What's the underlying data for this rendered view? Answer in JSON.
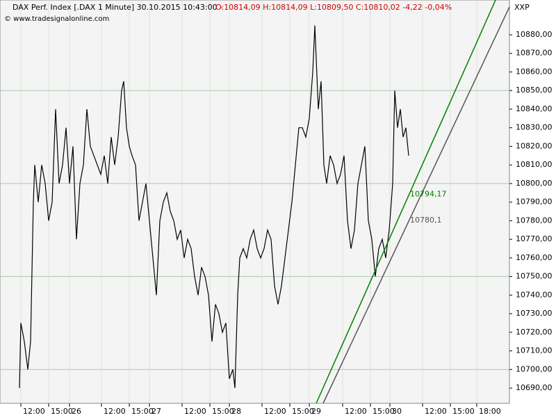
{
  "chart_data": {
    "type": "line",
    "title": "DAX Perf. Index [.DAX  1 Minute] 30.10.2015 10:43:00 -",
    "ohlc": "O:10814,09 H:10814,09 L:10809,50 C:10810,02 -4,22 -0,04%",
    "ohlc_color": "#cc0000",
    "source": "© www.tradesignalonline.com",
    "symbol": "XXP",
    "series": [
      {
        "name": "DAX Perf. Index",
        "color": "#000000",
        "x": [
          28,
          30,
          35,
          40,
          44,
          48,
          50,
          55,
          60,
          65,
          70,
          75,
          80,
          85,
          90,
          95,
          100,
          105,
          110,
          115,
          120,
          125,
          130,
          135,
          140,
          145,
          150,
          155,
          160,
          165,
          170,
          175,
          178,
          182,
          186,
          190,
          195,
          200,
          205,
          210,
          215,
          220,
          225,
          230,
          235,
          240,
          245,
          250,
          255,
          260,
          265,
          270,
          275,
          280,
          285,
          290,
          295,
          300,
          305,
          310,
          315,
          320,
          325,
          330,
          335,
          338,
          342,
          345,
          350,
          355,
          360,
          365,
          370,
          375,
          380,
          385,
          390,
          395,
          400,
          405,
          410,
          415,
          420,
          425,
          430,
          435,
          440,
          445,
          450,
          453,
          458,
          462,
          466,
          470,
          475,
          480,
          485,
          490,
          495,
          500,
          505,
          510,
          515,
          520,
          525,
          530,
          535,
          540,
          545,
          550,
          555,
          560,
          565,
          568,
          572,
          576,
          580,
          584,
          588
        ],
        "values": [
          10690,
          10725,
          10715,
          10700,
          10715,
          10790,
          10810,
          10790,
          10810,
          10800,
          10780,
          10790,
          10840,
          10800,
          10810,
          10830,
          10800,
          10820,
          10770,
          10800,
          10810,
          10840,
          10820,
          10815,
          10810,
          10805,
          10815,
          10800,
          10825,
          10810,
          10825,
          10850,
          10855,
          10830,
          10820,
          10815,
          10810,
          10780,
          10790,
          10800,
          10780,
          10760,
          10740,
          10780,
          10790,
          10795,
          10785,
          10780,
          10770,
          10775,
          10760,
          10770,
          10765,
          10750,
          10740,
          10755,
          10750,
          10740,
          10715,
          10735,
          10730,
          10720,
          10725,
          10695,
          10700,
          10690,
          10740,
          10760,
          10765,
          10760,
          10770,
          10775,
          10765,
          10760,
          10765,
          10775,
          10770,
          10745,
          10735,
          10745,
          10760,
          10775,
          10790,
          10810,
          10830,
          10830,
          10825,
          10835,
          10860,
          10885,
          10840,
          10855,
          10810,
          10800,
          10815,
          10810,
          10800,
          10805,
          10815,
          10780,
          10765,
          10775,
          10800,
          10810,
          10820,
          10780,
          10770,
          10750,
          10765,
          10770,
          10760,
          10775,
          10800,
          10850,
          10830,
          10840,
          10825,
          10830,
          10815
        ]
      }
    ],
    "trendlines": [
      {
        "color": "#008000",
        "x": [
          455,
          713
        ],
        "values": [
          10681.8,
          10898.7
        ],
        "label": {
          "value": 10794.17,
          "label": "10794,17"
        }
      },
      {
        "color": "#555555",
        "x": [
          465,
          733
        ],
        "values": [
          10681.8,
          10895
        ],
        "label": {
          "value": 10780.1,
          "label": "10780,1"
        }
      }
    ],
    "xlim": [
      0,
      733
    ],
    "ylim": [
      10681.8,
      10898.7
    ],
    "ygrid_step": 50,
    "xticks": [
      {
        "value": 30,
        "label": "12:00"
      },
      {
        "value": 70,
        "label": "15:00"
      },
      {
        "value": 100,
        "label": "26"
      },
      {
        "value": 146,
        "label": "12:00"
      },
      {
        "value": 186,
        "label": "15:00"
      },
      {
        "value": 215,
        "label": "27"
      },
      {
        "value": 262,
        "label": "12:00"
      },
      {
        "value": 302,
        "label": "15:00"
      },
      {
        "value": 330,
        "label": "28"
      },
      {
        "value": 377,
        "label": "12:00"
      },
      {
        "value": 417,
        "label": "15:00"
      },
      {
        "value": 445,
        "label": "29"
      },
      {
        "value": 493,
        "label": "12:00"
      },
      {
        "value": 533,
        "label": "15:00"
      },
      {
        "value": 561,
        "label": "30"
      },
      {
        "value": 608,
        "label": "12:00"
      },
      {
        "value": 648,
        "label": "15:00"
      },
      {
        "value": 686,
        "label": "18:00"
      }
    ],
    "yticks": [
      {
        "value": 10690,
        "label": "10690,00"
      },
      {
        "value": 10700,
        "label": "10700,00"
      },
      {
        "value": 10710,
        "label": "10710,00"
      },
      {
        "value": 10720,
        "label": "10720,00"
      },
      {
        "value": 10730,
        "label": "10730,00"
      },
      {
        "value": 10740,
        "label": "10740,00"
      },
      {
        "value": 10750,
        "label": "10750,00"
      },
      {
        "value": 10760,
        "label": "10760,00"
      },
      {
        "value": 10770,
        "label": "10770,00"
      },
      {
        "value": 10780,
        "label": "10780,00"
      },
      {
        "value": 10790,
        "label": "10790,00"
      },
      {
        "value": 10800,
        "label": "10800,00"
      },
      {
        "value": 10810,
        "label": "10810,00"
      },
      {
        "value": 10820,
        "label": "10820,00"
      },
      {
        "value": 10830,
        "label": "10830,00"
      },
      {
        "value": 10840,
        "label": "10840,00"
      },
      {
        "value": 10850,
        "label": "10850,00"
      },
      {
        "value": 10860,
        "label": "10860,00"
      },
      {
        "value": 10870,
        "label": "10870,00"
      },
      {
        "value": 10880,
        "label": "10880,00"
      }
    ]
  }
}
